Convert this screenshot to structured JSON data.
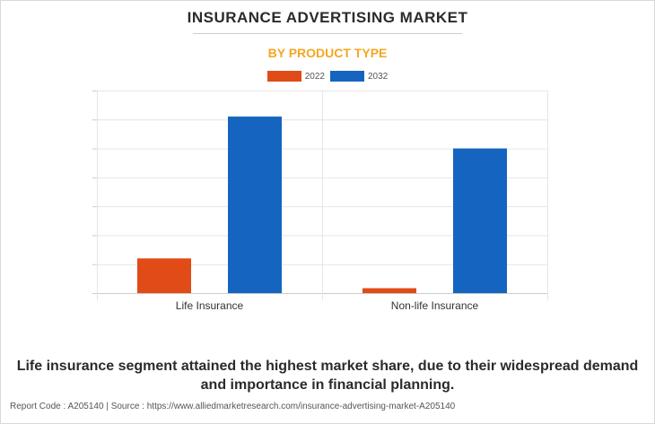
{
  "title": "INSURANCE ADVERTISING MARKET",
  "subtitle": "BY PRODUCT TYPE",
  "caption": "Life insurance segment attained the highest market share, due to their widespread demand and importance in financial planning.",
  "footer": {
    "report_code": "Report Code : A205140",
    "separator": "|",
    "source": "Source : https://www.alliedmarketresearch.com/insurance-advertising-market-A205140"
  },
  "colors": {
    "series_2022": "#e14b17",
    "series_2032": "#1565c0",
    "subtitle": "#f5a623"
  },
  "chart_data": {
    "type": "bar",
    "categories": [
      "Life Insurance",
      "Non-life Insurance"
    ],
    "series": [
      {
        "name": "2022",
        "values": [
          1.2,
          0.17
        ]
      },
      {
        "name": "2032",
        "values": [
          6.1,
          5.0
        ]
      }
    ],
    "ylim": [
      0,
      7
    ],
    "grid": true,
    "legend": "top-center"
  }
}
